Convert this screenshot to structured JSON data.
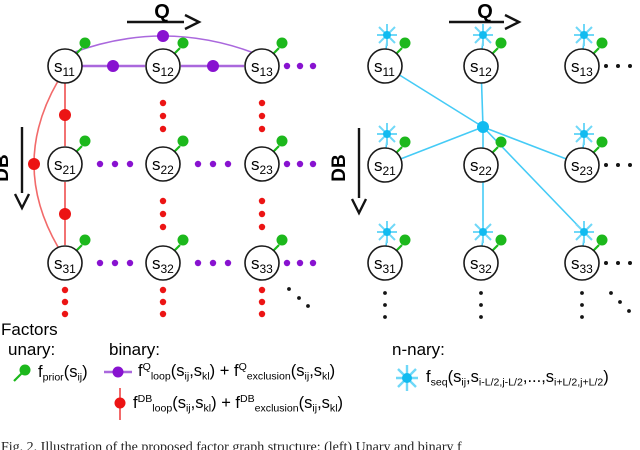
{
  "colors": {
    "green": "#1cb81c",
    "purple_line": "#aa68dd",
    "purple_dot": "#8812d0",
    "red_line": "#f26a6a",
    "red_dot": "#ec1414",
    "cyan_line": "#45cbf6",
    "cyan_ray": "#6fd8f8",
    "cyan_solid": "#12bbf0",
    "black": "#141414"
  },
  "left_diagram": {
    "q_label": "Q",
    "db_label": "DB",
    "node_base": "s",
    "node_subscripts": [
      [
        "11",
        "12",
        "13"
      ],
      [
        "21",
        "22",
        "23"
      ],
      [
        "31",
        "32",
        "33"
      ]
    ]
  },
  "right_diagram": {
    "q_label": "Q",
    "db_label": "DB",
    "node_base": "s",
    "node_subscripts": [
      [
        "11",
        "12",
        "13"
      ],
      [
        "21",
        "22",
        "23"
      ],
      [
        "31",
        "32",
        "33"
      ]
    ]
  },
  "legend": {
    "title": "Factors",
    "unary_label": "unary:",
    "binary_label": "binary:",
    "nnary_label": "n-nary:",
    "unary_formula": [
      {
        "t": "f"
      },
      {
        "sub": "prior"
      },
      {
        "t": "(s"
      },
      {
        "sub": "ij"
      },
      {
        "t": ")"
      }
    ],
    "binary_q_formula": [
      {
        "t": "f"
      },
      {
        "sup": "Q"
      },
      {
        "sub": "loop"
      },
      {
        "t": "(s"
      },
      {
        "sub": "ij"
      },
      {
        "t": ",s"
      },
      {
        "sub": "kl"
      },
      {
        "t": ") + f"
      },
      {
        "sup": "Q"
      },
      {
        "sub": "exclusion"
      },
      {
        "t": "(s"
      },
      {
        "sub": "ij"
      },
      {
        "t": ",s"
      },
      {
        "sub": "kl"
      },
      {
        "t": ")"
      }
    ],
    "binary_db_formula": [
      {
        "t": "f"
      },
      {
        "sup": "DB"
      },
      {
        "sub": "loop"
      },
      {
        "t": "(s"
      },
      {
        "sub": "ij"
      },
      {
        "t": ",s"
      },
      {
        "sub": "kl"
      },
      {
        "t": ") + f"
      },
      {
        "sup": "DB"
      },
      {
        "sub": "exclusion"
      },
      {
        "t": "(s"
      },
      {
        "sub": "ij"
      },
      {
        "t": ",s"
      },
      {
        "sub": "kl"
      },
      {
        "t": ")"
      }
    ],
    "nnary_formula": [
      {
        "t": "f"
      },
      {
        "sub": "seq"
      },
      {
        "t": "(s"
      },
      {
        "sub": "ij"
      },
      {
        "t": ",s"
      },
      {
        "sub": "i-L/2,j-L/2"
      },
      {
        "t": ",...,s"
      },
      {
        "sub": "i+L/2,j+L/2"
      },
      {
        "t": ")"
      }
    ]
  },
  "caption_fragment": "Fig. 2.    Illustration of the proposed factor graph structure: (left) Unary and binary f"
}
